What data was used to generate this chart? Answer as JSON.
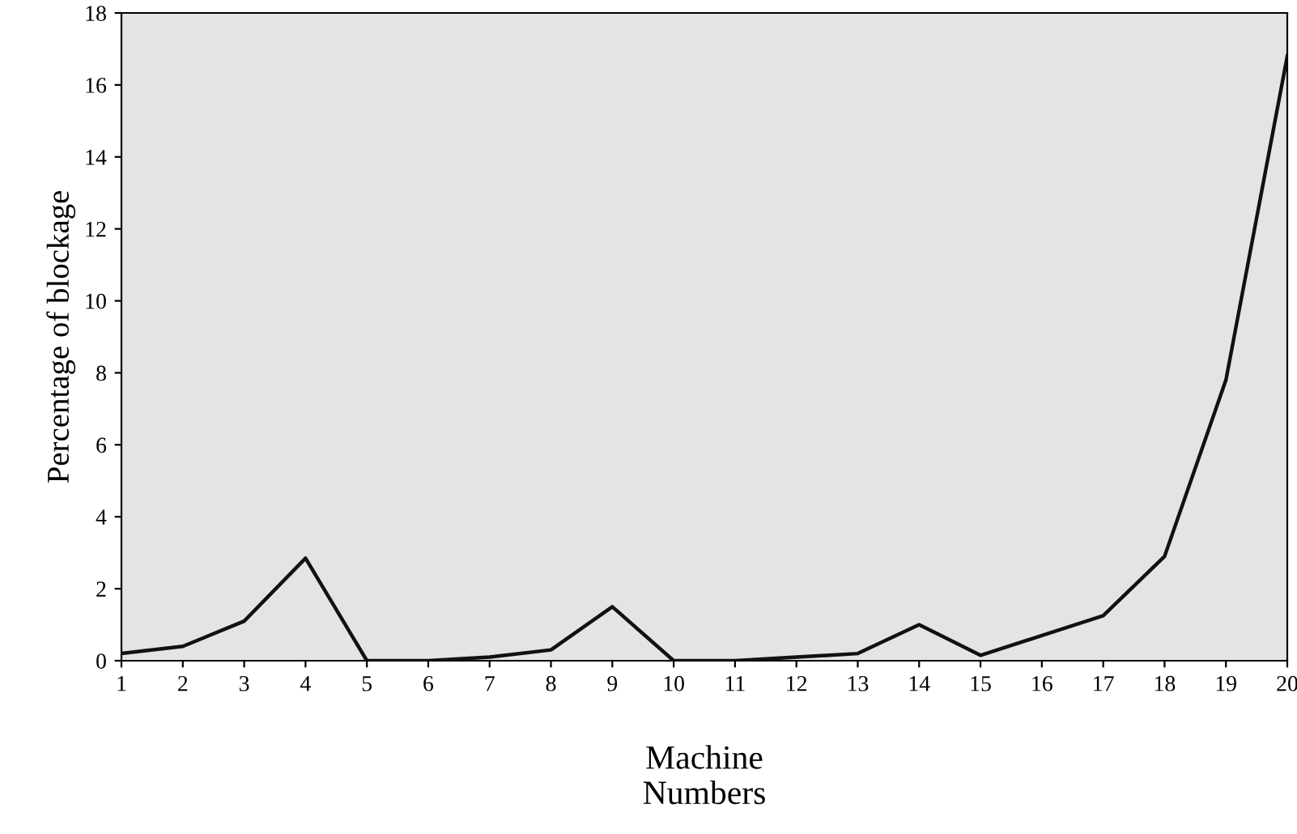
{
  "chart_data": {
    "type": "line",
    "xlabel": "Machine\nNumbers",
    "ylabel": "Percentage of blockage",
    "x": [
      1,
      2,
      3,
      4,
      5,
      6,
      7,
      8,
      9,
      10,
      11,
      12,
      13,
      14,
      15,
      16,
      17,
      18,
      19,
      20
    ],
    "series": [
      {
        "color": "#111111",
        "values": [
          0.2,
          0.4,
          1.1,
          2.85,
          0,
          0,
          0.1,
          0.3,
          1.5,
          0,
          0,
          0.1,
          0.2,
          1.0,
          0.15,
          0.7,
          1.25,
          2.9,
          7.8,
          16.8
        ]
      }
    ],
    "xlim": [
      1,
      20
    ],
    "xticks": [
      1,
      2,
      3,
      4,
      5,
      6,
      7,
      8,
      9,
      10,
      11,
      12,
      13,
      14,
      15,
      16,
      17,
      18,
      19,
      20
    ],
    "ylim": [
      0,
      18
    ],
    "yticks": [
      0,
      2,
      4,
      6,
      8,
      10,
      12,
      14,
      16,
      18
    ],
    "grid": false,
    "legend": false,
    "marker": "none",
    "line_style": "solid"
  }
}
